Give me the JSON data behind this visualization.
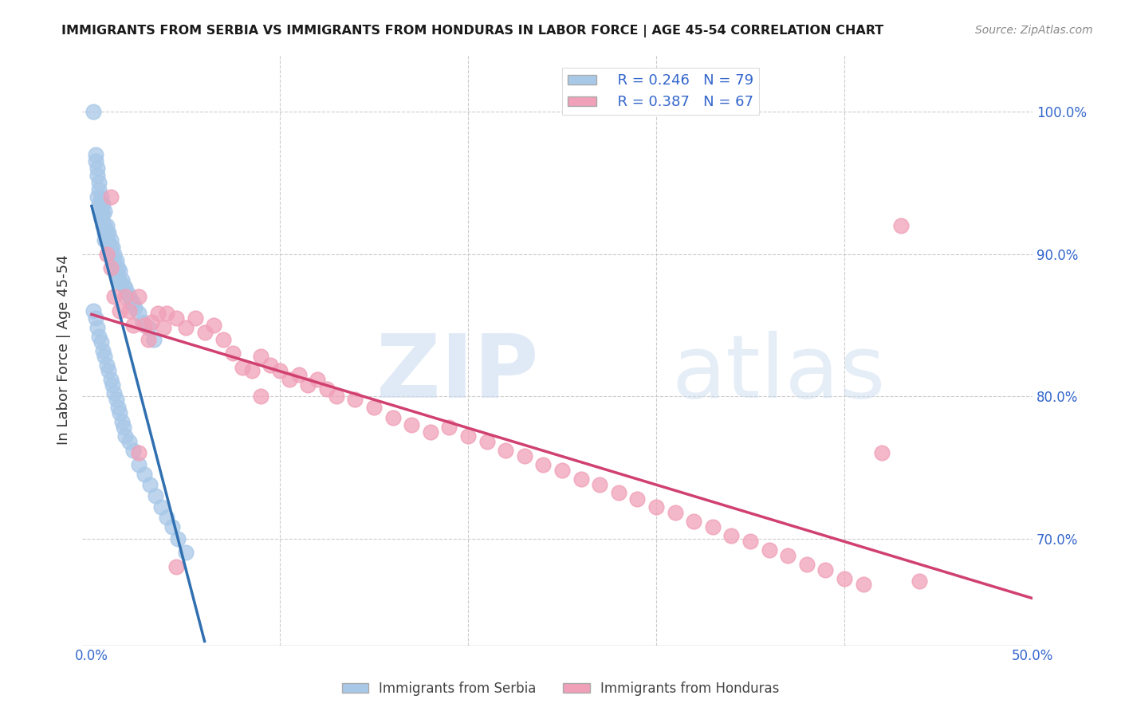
{
  "title": "IMMIGRANTS FROM SERBIA VS IMMIGRANTS FROM HONDURAS IN LABOR FORCE | AGE 45-54 CORRELATION CHART",
  "source": "Source: ZipAtlas.com",
  "ylabel": "In Labor Force | Age 45-54",
  "xlim": [
    -0.005,
    0.5
  ],
  "ylim": [
    0.625,
    1.04
  ],
  "xticks": [
    0.0,
    0.1,
    0.2,
    0.3,
    0.4,
    0.5
  ],
  "yticks_left": [],
  "yticks_right": [
    0.7,
    0.8,
    0.9,
    1.0
  ],
  "xtick_labels": [
    "0.0%",
    "",
    "",
    "",
    "",
    "50.0%"
  ],
  "ytick_labels_right": [
    "70.0%",
    "80.0%",
    "90.0%",
    "100.0%"
  ],
  "serbia_color": "#a8c8e8",
  "honduras_color": "#f0a0b8",
  "serbia_line_color": "#3070b0",
  "honduras_line_color": "#d04070",
  "serbia_R": 0.246,
  "serbia_N": 79,
  "honduras_R": 0.387,
  "honduras_N": 67,
  "watermark_zip": "ZIP",
  "watermark_atlas": "atlas",
  "serbia_x": [
    0.001,
    0.002,
    0.002,
    0.003,
    0.003,
    0.003,
    0.004,
    0.004,
    0.004,
    0.005,
    0.005,
    0.005,
    0.005,
    0.006,
    0.006,
    0.006,
    0.007,
    0.007,
    0.007,
    0.007,
    0.008,
    0.008,
    0.008,
    0.009,
    0.009,
    0.01,
    0.01,
    0.01,
    0.011,
    0.011,
    0.012,
    0.012,
    0.013,
    0.013,
    0.014,
    0.014,
    0.015,
    0.015,
    0.016,
    0.017,
    0.018,
    0.019,
    0.02,
    0.021,
    0.022,
    0.023,
    0.025,
    0.027,
    0.03,
    0.033,
    0.001,
    0.002,
    0.003,
    0.004,
    0.005,
    0.006,
    0.007,
    0.008,
    0.009,
    0.01,
    0.011,
    0.012,
    0.013,
    0.014,
    0.015,
    0.016,
    0.017,
    0.018,
    0.02,
    0.022,
    0.025,
    0.028,
    0.031,
    0.034,
    0.037,
    0.04,
    0.043,
    0.046,
    0.05
  ],
  "serbia_y": [
    1.0,
    0.97,
    0.965,
    0.96,
    0.955,
    0.94,
    0.95,
    0.945,
    0.935,
    0.94,
    0.935,
    0.93,
    0.925,
    0.935,
    0.928,
    0.92,
    0.93,
    0.92,
    0.915,
    0.91,
    0.92,
    0.915,
    0.91,
    0.915,
    0.908,
    0.91,
    0.905,
    0.9,
    0.905,
    0.898,
    0.9,
    0.895,
    0.895,
    0.888,
    0.89,
    0.882,
    0.888,
    0.88,
    0.882,
    0.878,
    0.876,
    0.872,
    0.87,
    0.868,
    0.865,
    0.862,
    0.858,
    0.852,
    0.848,
    0.84,
    0.86,
    0.855,
    0.848,
    0.842,
    0.838,
    0.832,
    0.828,
    0.822,
    0.818,
    0.812,
    0.808,
    0.802,
    0.798,
    0.792,
    0.788,
    0.782,
    0.778,
    0.772,
    0.768,
    0.762,
    0.752,
    0.745,
    0.738,
    0.73,
    0.722,
    0.715,
    0.708,
    0.7,
    0.69
  ],
  "honduras_x": [
    0.008,
    0.01,
    0.012,
    0.015,
    0.018,
    0.02,
    0.022,
    0.025,
    0.028,
    0.03,
    0.032,
    0.035,
    0.038,
    0.04,
    0.045,
    0.05,
    0.055,
    0.06,
    0.065,
    0.07,
    0.075,
    0.08,
    0.085,
    0.09,
    0.095,
    0.1,
    0.105,
    0.11,
    0.115,
    0.12,
    0.125,
    0.13,
    0.14,
    0.15,
    0.16,
    0.17,
    0.18,
    0.19,
    0.2,
    0.21,
    0.22,
    0.23,
    0.24,
    0.25,
    0.26,
    0.27,
    0.28,
    0.29,
    0.3,
    0.31,
    0.32,
    0.33,
    0.34,
    0.35,
    0.36,
    0.37,
    0.38,
    0.39,
    0.4,
    0.41,
    0.42,
    0.43,
    0.44,
    0.01,
    0.025,
    0.045,
    0.09
  ],
  "honduras_y": [
    0.9,
    0.89,
    0.87,
    0.86,
    0.87,
    0.86,
    0.85,
    0.87,
    0.85,
    0.84,
    0.852,
    0.858,
    0.848,
    0.858,
    0.855,
    0.848,
    0.855,
    0.845,
    0.85,
    0.84,
    0.83,
    0.82,
    0.818,
    0.828,
    0.822,
    0.818,
    0.812,
    0.815,
    0.808,
    0.812,
    0.805,
    0.8,
    0.798,
    0.792,
    0.785,
    0.78,
    0.775,
    0.778,
    0.772,
    0.768,
    0.762,
    0.758,
    0.752,
    0.748,
    0.742,
    0.738,
    0.732,
    0.728,
    0.722,
    0.718,
    0.712,
    0.708,
    0.702,
    0.698,
    0.692,
    0.688,
    0.682,
    0.678,
    0.672,
    0.668,
    0.76,
    0.92,
    0.67,
    0.94,
    0.76,
    0.68,
    0.8
  ]
}
